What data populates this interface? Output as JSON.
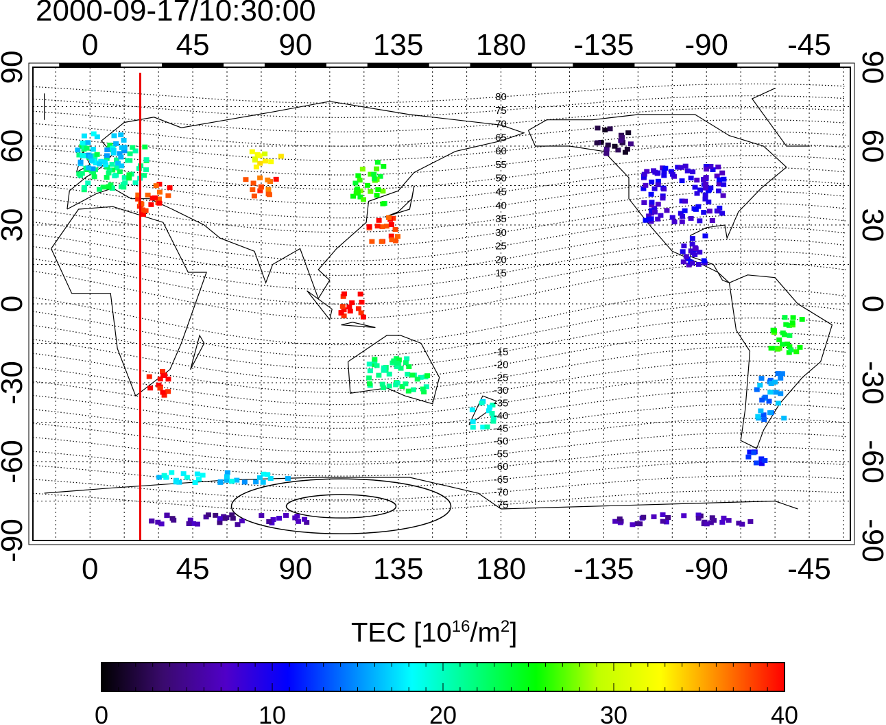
{
  "title": "2000-09-17/10:30:00",
  "map": {
    "x_ticks_top": [
      "0",
      "45",
      "90",
      "135",
      "180",
      "-135",
      "-90",
      "-45"
    ],
    "x_ticks_bottom": [
      "0",
      "45",
      "90",
      "135",
      "180",
      "-135",
      "-90",
      "-45"
    ],
    "y_ticks": [
      "90",
      "60",
      "30",
      "0",
      "-30",
      "-60",
      "-90"
    ],
    "lon_range": [
      -25,
      333
    ],
    "lat_range": [
      -90,
      90
    ],
    "marker_meridian_lon": 22,
    "marker_color": "#ee0000",
    "contour_labels_north": [
      "80",
      "75",
      "70",
      "65",
      "60",
      "55",
      "50",
      "45",
      "40",
      "35",
      "30",
      "25",
      "20",
      "15"
    ],
    "contour_labels_south": [
      "-15",
      "-20",
      "-25",
      "-30",
      "-35",
      "-40",
      "-45",
      "-50",
      "-55",
      "-60",
      "-65",
      "-70",
      "-75"
    ]
  },
  "colorbar": {
    "label_prefix": "TEC  [10",
    "label_exp": "16",
    "label_mid": "/m",
    "label_exp2": "2",
    "label_suffix": "]",
    "ticks": [
      "0",
      "10",
      "20",
      "30",
      "40"
    ],
    "range": [
      0,
      40
    ],
    "stops": [
      "#000000",
      "#3a0a6e",
      "#5000c8",
      "#0000ff",
      "#0080ff",
      "#00ffff",
      "#00ff80",
      "#00ff00",
      "#c0ff00",
      "#ffff00",
      "#ff8000",
      "#ff0000"
    ]
  },
  "tec_patches": [
    {
      "lon": 10,
      "lat": 52,
      "w": 30,
      "h": 18,
      "tec": 22,
      "region": "europe"
    },
    {
      "lon": 5,
      "lat": 58,
      "w": 22,
      "h": 14,
      "tec": 17,
      "region": "north-europe"
    },
    {
      "lon": 28,
      "lat": 40,
      "w": 14,
      "h": 12,
      "tec": 39,
      "region": "mediterranean"
    },
    {
      "lon": 75,
      "lat": 45,
      "w": 14,
      "h": 8,
      "tec": 38,
      "region": "central-asia"
    },
    {
      "lon": 78,
      "lat": 55,
      "w": 14,
      "h": 6,
      "tec": 32,
      "region": "siberia"
    },
    {
      "lon": 122,
      "lat": 46,
      "w": 14,
      "h": 16,
      "tec": 26,
      "region": "china-north"
    },
    {
      "lon": 128,
      "lat": 28,
      "w": 14,
      "h": 10,
      "tec": 39,
      "region": "china-south"
    },
    {
      "lon": 115,
      "lat": 0,
      "w": 10,
      "h": 12,
      "tec": 40,
      "region": "indonesia"
    },
    {
      "lon": 30,
      "lat": -30,
      "w": 10,
      "h": 10,
      "tec": 40,
      "region": "south-africa"
    },
    {
      "lon": 135,
      "lat": -27,
      "w": 26,
      "h": 14,
      "tec": 22,
      "region": "australia"
    },
    {
      "lon": 172,
      "lat": -42,
      "w": 10,
      "h": 10,
      "tec": 19,
      "region": "new-zealand"
    },
    {
      "lon": -100,
      "lat": 42,
      "w": 36,
      "h": 22,
      "tec": 9,
      "region": "north-america"
    },
    {
      "lon": -130,
      "lat": 62,
      "w": 16,
      "h": 10,
      "tec": 3,
      "region": "alaska"
    },
    {
      "lon": -95,
      "lat": 20,
      "w": 14,
      "h": 12,
      "tec": 9,
      "region": "central-america"
    },
    {
      "lon": -55,
      "lat": -12,
      "w": 14,
      "h": 14,
      "tec": 25,
      "region": "brazil"
    },
    {
      "lon": -62,
      "lat": -35,
      "w": 12,
      "h": 18,
      "tec": 15,
      "region": "argentina"
    },
    {
      "lon": -68,
      "lat": -58,
      "w": 8,
      "h": 6,
      "tec": 11,
      "region": "tierra-del-fuego"
    },
    {
      "lon": 60,
      "lat": -82,
      "w": 70,
      "h": 4,
      "tec": 6,
      "region": "antarctica-east"
    },
    {
      "lon": -100,
      "lat": -82,
      "w": 60,
      "h": 4,
      "tec": 6,
      "region": "antarctica-west"
    },
    {
      "lon": 60,
      "lat": -66,
      "w": 60,
      "h": 4,
      "tec": 17,
      "region": "antarctic-coast"
    }
  ]
}
